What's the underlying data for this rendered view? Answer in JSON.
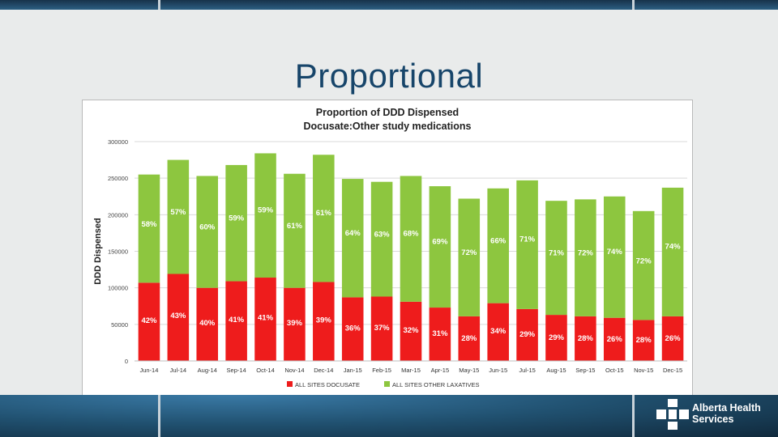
{
  "slide": {
    "title": "Proportional"
  },
  "brand": {
    "name": "Alberta Health\nServices",
    "logo_icon": "ahs-cross-icon"
  },
  "chart_data": {
    "type": "bar",
    "stacked": true,
    "title": "Proportion of DDD Dispensed",
    "subtitle": "Docusate:Other study medications",
    "ylabel": "DDD Dispensed",
    "xlabel": "",
    "ylim": [
      0,
      300000
    ],
    "yticks": [
      "0",
      "50000",
      "100000",
      "150000",
      "200000",
      "250000",
      "300000"
    ],
    "grid": true,
    "legend_position": "bottom",
    "categories": [
      "Jun-14",
      "Jul-14",
      "Aug-14",
      "Sep-14",
      "Oct-14",
      "Nov-14",
      "Dec-14",
      "Jan-15",
      "Feb-15",
      "Mar-15",
      "Apr-15",
      "May-15",
      "Jun-15",
      "Jul-15",
      "Aug-15",
      "Sep-15",
      "Oct-15",
      "Nov-15",
      "Dec-15"
    ],
    "series": [
      {
        "name": "ALL SITES DOCUSATE",
        "color": "#ee1c1c",
        "values": [
          107000,
          119000,
          100000,
          109000,
          114000,
          100000,
          108000,
          87000,
          88000,
          81000,
          73000,
          61000,
          79000,
          71000,
          63000,
          61000,
          59000,
          56000,
          61000
        ],
        "labels": [
          "42%",
          "43%",
          "40%",
          "41%",
          "41%",
          "39%",
          "39%",
          "36%",
          "37%",
          "32%",
          "31%",
          "28%",
          "34%",
          "29%",
          "29%",
          "28%",
          "26%",
          "28%",
          "26%"
        ]
      },
      {
        "name": "ALL SITES OTHER LAXATIVES",
        "color": "#8dc63f",
        "values": [
          148000,
          156000,
          153000,
          159000,
          170000,
          156000,
          174000,
          162000,
          157000,
          172000,
          166000,
          161000,
          157000,
          176000,
          156000,
          160000,
          166000,
          149000,
          176000
        ],
        "labels": [
          "58%",
          "57%",
          "60%",
          "59%",
          "59%",
          "61%",
          "61%",
          "64%",
          "63%",
          "68%",
          "69%",
          "72%",
          "66%",
          "71%",
          "71%",
          "72%",
          "74%",
          "72%",
          "74%"
        ]
      }
    ]
  }
}
